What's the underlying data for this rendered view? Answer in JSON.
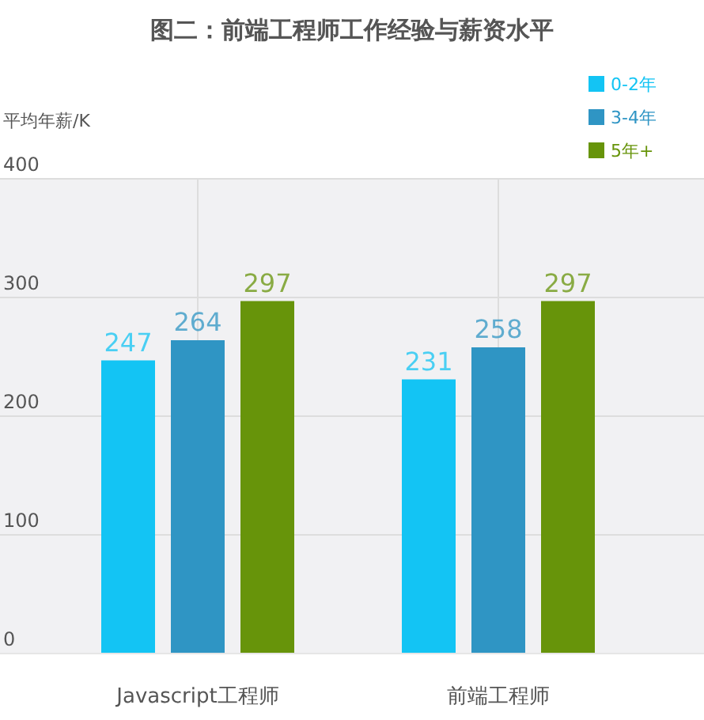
{
  "chart_data": {
    "type": "bar",
    "title": "图二：前端工程师工作经验与薪资水平",
    "ylabel": "平均年薪/K",
    "categories": [
      "Javascript工程师",
      "前端工程师"
    ],
    "series": [
      {
        "name": "0-2年",
        "color": "#13c4f4",
        "values": [
          247,
          231
        ]
      },
      {
        "name": "3-4年",
        "color": "#2f95c4",
        "values": [
          264,
          258
        ]
      },
      {
        "name": "5年+",
        "color": "#67940a",
        "values": [
          297,
          297
        ]
      }
    ],
    "ylim": [
      0,
      400
    ],
    "yticks": [
      0,
      100,
      200,
      300,
      400
    ],
    "grid": true,
    "legend": "top right",
    "data_labels": true
  }
}
